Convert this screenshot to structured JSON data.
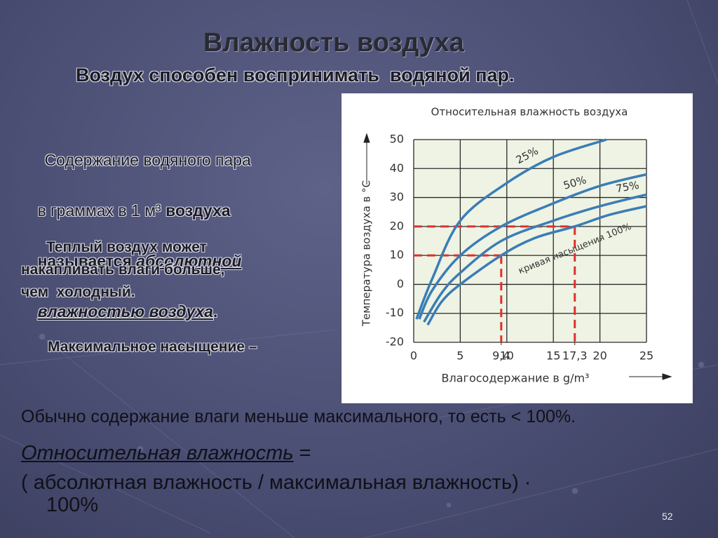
{
  "slide": {
    "title": "Влажность воздуха",
    "subtitle": "Воздух способен воспринимать  водяной пар.",
    "para1": [
      "Содержание водяного пара",
      "в граммах в 1 м³ ",
      "воздуха",
      "называется ",
      "абсолютной",
      "влажностью воздуха",
      "."
    ],
    "para2": [
      "Теплый воздух может",
      "накапливать влаги больше,",
      "чем  холодный."
    ],
    "max_saturation": "Максимальное насыщение –",
    "usually": "Обычно содержание влаги меньше максимального, то есть < 100%.",
    "relative_term": "Относительная влажность",
    "equals": " =",
    "formula": "( абсолютная влажность / максимальная влажность) ·",
    "formula_tail": "100%",
    "page_number": "52"
  },
  "chart_data": {
    "type": "line",
    "title": "Относительная влажность воздуха",
    "x_label": "Влагосодержание в g/m³",
    "y_label": "Температура воздуха в °С",
    "xlim": [
      0,
      25
    ],
    "ylim": [
      -20,
      50
    ],
    "xticks": [
      0,
      5,
      {
        "value": 9.4,
        "label": "9,4"
      },
      10,
      15,
      {
        "value": 17.3,
        "label": "17,3"
      },
      20,
      25
    ],
    "yticks": [
      -20,
      -10,
      0,
      10,
      20,
      30,
      40,
      50
    ],
    "grid": true,
    "series": [
      {
        "name": "25%",
        "color": "#3b7db5",
        "x": [
          0.3,
          2,
          5,
          10,
          15,
          20.7
        ],
        "values": [
          -12,
          2,
          22,
          35,
          44,
          50
        ]
      },
      {
        "name": "50%",
        "color": "#3b7db5",
        "x": [
          0.6,
          2,
          5,
          9.4,
          15,
          20,
          25
        ],
        "values": [
          -12,
          -2,
          10,
          20,
          28,
          34,
          38
        ]
      },
      {
        "name": "75%",
        "color": "#3b7db5",
        "x": [
          1.1,
          3,
          5,
          9.4,
          15,
          20,
          25
        ],
        "values": [
          -13,
          -3,
          4,
          15,
          22,
          27,
          31
        ]
      },
      {
        "name": "кривая насыщения 100%",
        "color": "#3b7db5",
        "x": [
          1.5,
          3,
          5,
          9.4,
          13,
          17.3,
          21,
          25
        ],
        "values": [
          -14,
          -6,
          0,
          10,
          16,
          20,
          24,
          27
        ]
      }
    ],
    "guides": [
      {
        "x": 9.4,
        "y": 10
      },
      {
        "x": 17.3,
        "y": 20
      }
    ],
    "guide_color": "#e0302a"
  }
}
